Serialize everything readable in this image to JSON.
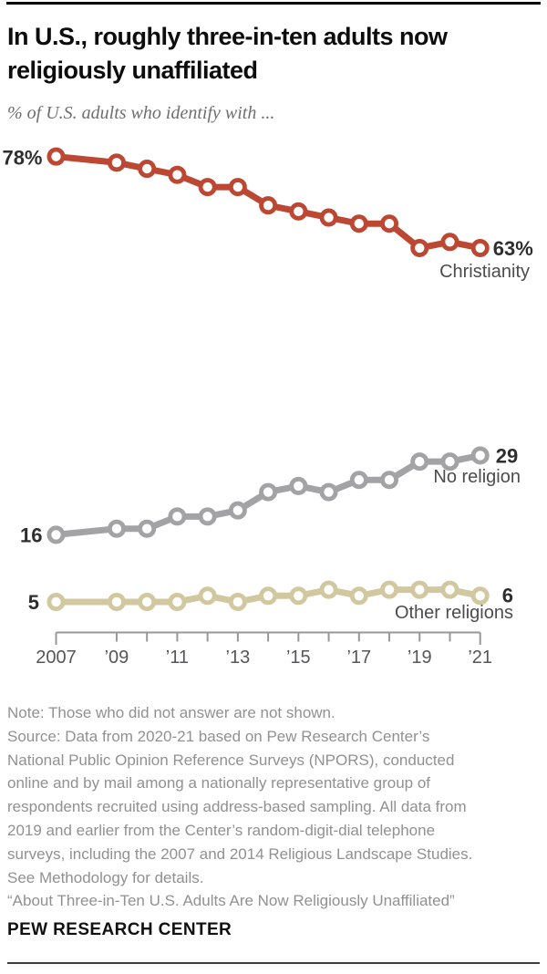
{
  "chart_data": {
    "type": "line",
    "title": "In U.S., roughly three-in-ten adults now religiously unaffiliated",
    "title_display": "In U.S., roughly three-in-ten adults now\nreligiously unaffiliated",
    "subtitle": "% of U.S. adults who identify with ...",
    "x": [
      2007,
      2009,
      2010,
      2011,
      2012,
      2013,
      2014,
      2015,
      2016,
      2017,
      2018,
      2019,
      2020,
      2021
    ],
    "x_tick_labels": [
      {
        "year": 2007,
        "label": "2007"
      },
      {
        "year": 2009,
        "label": "’09"
      },
      {
        "year": 2011,
        "label": "’11"
      },
      {
        "year": 2013,
        "label": "’13"
      },
      {
        "year": 2015,
        "label": "’15"
      },
      {
        "year": 2017,
        "label": "’17"
      },
      {
        "year": 2019,
        "label": "’19"
      },
      {
        "year": 2021,
        "label": "’21"
      }
    ],
    "xlim": [
      2007,
      2021
    ],
    "grid": false,
    "legend": "direct labels at line ends",
    "series": [
      {
        "name": "Christianity",
        "color": "#bc4733",
        "start_label": "78%",
        "end_label": "63%",
        "values": [
          78,
          77,
          76,
          75,
          73,
          73,
          70,
          69,
          68,
          67,
          67,
          63,
          64,
          63
        ]
      },
      {
        "name": "No religion",
        "color": "#a3a3a5",
        "start_label": "16",
        "end_label": "29",
        "values": [
          16,
          17,
          17,
          19,
          19,
          20,
          23,
          24,
          23,
          25,
          25,
          28,
          28,
          29
        ]
      },
      {
        "name": "Other religions",
        "color": "#d2c8a0",
        "start_label": "5",
        "end_label": "6",
        "values": [
          5,
          5,
          5,
          5,
          6,
          5,
          6,
          6,
          7,
          6,
          7,
          7,
          7,
          6
        ]
      }
    ]
  },
  "note": {
    "text": "Note: Those who did not answer are not shown.\nSource: Data from 2020-21 based on Pew Research Center’s\nNational Public Opinion Reference Surveys (NPORS), conducted\nonline and by mail among a nationally representative group of\nrespondents recruited using address-based sampling. All data from\n2019 and earlier from the Center’s random-digit-dial telephone\nsurveys, including the 2007 and 2014 Religious Landscape Studies.\nSee Methodology for details.\n“About Three-in-Ten U.S. Adults Are Now Religiously Unaffiliated”"
  },
  "footer": {
    "brand": "PEW RESEARCH CENTER"
  }
}
